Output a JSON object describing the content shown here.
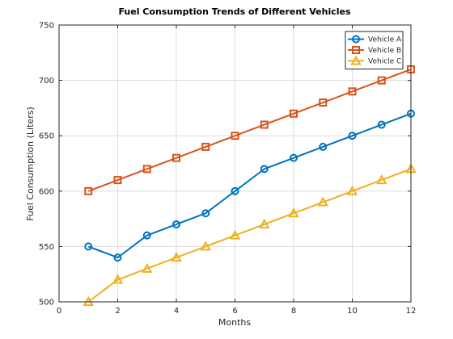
{
  "chart_data": {
    "type": "line",
    "title": "Fuel Consumption Trends of Different Vehicles",
    "xlabel": "Months",
    "ylabel": "Fuel Consumption (Liters)",
    "xlim": [
      0,
      12
    ],
    "ylim": [
      500,
      750
    ],
    "xticks": [
      0,
      2,
      4,
      6,
      8,
      10,
      12
    ],
    "yticks": [
      500,
      550,
      600,
      650,
      700,
      750
    ],
    "grid": true,
    "legend_position": "top-right",
    "x": [
      1,
      2,
      3,
      4,
      5,
      6,
      7,
      8,
      9,
      10,
      11,
      12
    ],
    "series": [
      {
        "name": "Vehicle A",
        "color": "#0072BD",
        "marker": "circle",
        "values": [
          550,
          540,
          560,
          570,
          580,
          600,
          620,
          630,
          640,
          650,
          660,
          670
        ]
      },
      {
        "name": "Vehicle B",
        "color": "#D95319",
        "marker": "square",
        "values": [
          600,
          610,
          620,
          630,
          640,
          650,
          660,
          670,
          680,
          690,
          700,
          710
        ]
      },
      {
        "name": "Vehicle C",
        "color": "#EDB120",
        "marker": "triangle",
        "values": [
          500,
          520,
          530,
          540,
          550,
          560,
          570,
          580,
          590,
          600,
          610,
          620
        ]
      }
    ]
  }
}
